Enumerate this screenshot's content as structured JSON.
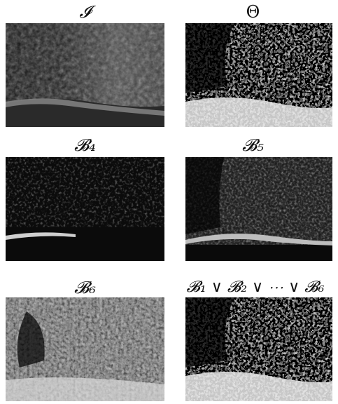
{
  "figure": {
    "panels": [
      {
        "caption": "𝓘",
        "kind": "original"
      },
      {
        "caption": "Θ",
        "kind": "threshold"
      },
      {
        "caption": "𝓑₄",
        "kind": "bitplane-4"
      },
      {
        "caption": "𝓑₅",
        "kind": "bitplane-5"
      },
      {
        "caption": "𝓑₆",
        "kind": "bitplane-6"
      },
      {
        "caption": "𝓑₁ ∨ 𝓑₂ ∨ ⋯ ∨ 𝓑₆",
        "kind": "union"
      }
    ]
  }
}
